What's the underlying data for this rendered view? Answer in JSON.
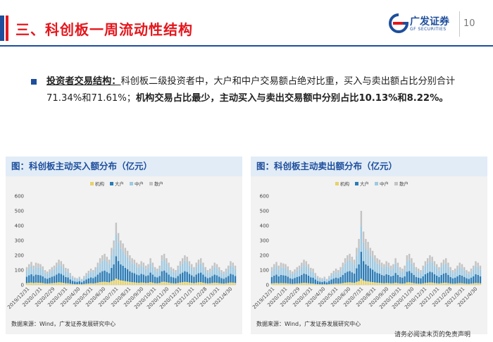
{
  "header": {
    "title": "三、科创板一周流动性结构",
    "logo_cn": "广发证券",
    "logo_en": "GF SECURITIES",
    "page_number": "10"
  },
  "body": {
    "label": "投资者交易结构：",
    "text1": "科创板二级投资者中，大户和中户交易额占绝对比重，买入与卖出额占比分别合计71.34%和71.61%；",
    "text2": "机构交易占比最少，主动买入与卖出交易额中分别占比10.13%和8.22%。"
  },
  "footer": {
    "disclaimer": "请务必阅读末页的免责声明"
  },
  "colors": {
    "institution": "#e6d268",
    "large": "#2a7bb6",
    "medium": "#9ec9e2",
    "retail": "#c3c3c3",
    "title_red": "#e4161c",
    "brand_blue": "#1e4e9c"
  },
  "chart_data": [
    {
      "type": "area",
      "stacked": true,
      "title": "图：科创板主动买入额分布（亿元）",
      "source": "数据来源：Wind，广发证券发展研究中心",
      "legend": [
        "机构",
        "大户",
        "中户",
        "散户"
      ],
      "legend_position": "top",
      "ylim": [
        0,
        600
      ],
      "yticks": [
        0,
        100,
        200,
        300,
        400,
        500,
        600
      ],
      "xticks": [
        "2019/12/31",
        "2020/1/31",
        "2020/2/29",
        "2020/3/31",
        "2020/4/30",
        "2020/5/31",
        "2020/6/30",
        "2020/7/31",
        "2020/8/31",
        "2020/9/30",
        "2020/10/31",
        "2020/11/30",
        "2020/12/31",
        "2021/1/31",
        "2021/2/28",
        "2021/3/31",
        "2021/4/30"
      ],
      "grid": false,
      "series_total_profile": [
        [
          0,
          120
        ],
        [
          1,
          140
        ],
        [
          2,
          155
        ],
        [
          3,
          130
        ],
        [
          4,
          150
        ],
        [
          5,
          145
        ],
        [
          6,
          140
        ],
        [
          7,
          125
        ],
        [
          8,
          100
        ],
        [
          9,
          90
        ],
        [
          10,
          105
        ],
        [
          11,
          120
        ],
        [
          12,
          130
        ],
        [
          13,
          150
        ],
        [
          14,
          170
        ],
        [
          15,
          160
        ],
        [
          16,
          140
        ],
        [
          17,
          115
        ],
        [
          18,
          110
        ],
        [
          19,
          80
        ],
        [
          20,
          60
        ],
        [
          21,
          50
        ],
        [
          22,
          45
        ],
        [
          23,
          55
        ],
        [
          24,
          40
        ],
        [
          25,
          60
        ],
        [
          26,
          80
        ],
        [
          27,
          95
        ],
        [
          28,
          110
        ],
        [
          29,
          100
        ],
        [
          30,
          120
        ],
        [
          31,
          150
        ],
        [
          32,
          180
        ],
        [
          33,
          200
        ],
        [
          34,
          210
        ],
        [
          35,
          190
        ],
        [
          36,
          170
        ],
        [
          37,
          250
        ],
        [
          38,
          300
        ],
        [
          39,
          420
        ],
        [
          40,
          350
        ],
        [
          41,
          300
        ],
        [
          42,
          280
        ],
        [
          43,
          250
        ],
        [
          44,
          230
        ],
        [
          45,
          200
        ],
        [
          46,
          180
        ],
        [
          47,
          170
        ],
        [
          48,
          150
        ],
        [
          49,
          140
        ],
        [
          50,
          160
        ],
        [
          51,
          150
        ],
        [
          52,
          130
        ],
        [
          53,
          140
        ],
        [
          54,
          180
        ],
        [
          55,
          150
        ],
        [
          56,
          120
        ],
        [
          57,
          110
        ],
        [
          58,
          130
        ],
        [
          59,
          200
        ],
        [
          60,
          210
        ],
        [
          61,
          180
        ],
        [
          62,
          150
        ],
        [
          63,
          120
        ],
        [
          64,
          110
        ],
        [
          65,
          100
        ],
        [
          66,
          130
        ],
        [
          67,
          160
        ],
        [
          68,
          180
        ],
        [
          69,
          200
        ],
        [
          70,
          190
        ],
        [
          71,
          160
        ],
        [
          72,
          140
        ],
        [
          73,
          120
        ],
        [
          74,
          150
        ],
        [
          75,
          170
        ],
        [
          76,
          180
        ],
        [
          77,
          150
        ],
        [
          78,
          120
        ],
        [
          79,
          100
        ],
        [
          80,
          110
        ],
        [
          81,
          130
        ],
        [
          82,
          150
        ],
        [
          83,
          140
        ],
        [
          84,
          120
        ],
        [
          85,
          100
        ],
        [
          86,
          90
        ],
        [
          87,
          110
        ],
        [
          88,
          130
        ],
        [
          89,
          160
        ],
        [
          90,
          150
        ],
        [
          91,
          130
        ]
      ],
      "shares": {
        "机构": 0.1013,
        "大户": 0.36,
        "中户": 0.3534,
        "散户": 0.1853
      }
    },
    {
      "type": "area",
      "stacked": true,
      "title": "图：科创板主动卖出额分布（亿元）",
      "source": "数据来源：Wind，广发证券发展研究中心",
      "legend": [
        "机构",
        "大户",
        "中户",
        "散户"
      ],
      "legend_position": "top",
      "ylim": [
        0,
        600
      ],
      "yticks": [
        0,
        100,
        200,
        300,
        400,
        500,
        600
      ],
      "xticks": [
        "2019/12/31",
        "2020/1/31",
        "2020/2/29",
        "2020/3/31",
        "2020/4/30",
        "2020/5/31",
        "2020/6/30",
        "2020/7/31",
        "2020/8/31",
        "2020/9/30",
        "2020/10/31",
        "2020/11/30",
        "2020/12/31",
        "2021/1/31",
        "2021/2/28",
        "2021/3/31",
        "2021/4/30"
      ],
      "grid": false,
      "series_total_profile": [
        [
          0,
          120
        ],
        [
          1,
          140
        ],
        [
          2,
          155
        ],
        [
          3,
          130
        ],
        [
          4,
          150
        ],
        [
          5,
          145
        ],
        [
          6,
          140
        ],
        [
          7,
          125
        ],
        [
          8,
          100
        ],
        [
          9,
          90
        ],
        [
          10,
          105
        ],
        [
          11,
          120
        ],
        [
          12,
          130
        ],
        [
          13,
          150
        ],
        [
          14,
          170
        ],
        [
          15,
          160
        ],
        [
          16,
          140
        ],
        [
          17,
          115
        ],
        [
          18,
          110
        ],
        [
          19,
          80
        ],
        [
          20,
          60
        ],
        [
          21,
          50
        ],
        [
          22,
          45
        ],
        [
          23,
          55
        ],
        [
          24,
          40
        ],
        [
          25,
          60
        ],
        [
          26,
          80
        ],
        [
          27,
          95
        ],
        [
          28,
          110
        ],
        [
          29,
          100
        ],
        [
          30,
          120
        ],
        [
          31,
          150
        ],
        [
          32,
          180
        ],
        [
          33,
          200
        ],
        [
          34,
          210
        ],
        [
          35,
          190
        ],
        [
          36,
          170
        ],
        [
          37,
          250
        ],
        [
          38,
          310
        ],
        [
          39,
          500
        ],
        [
          40,
          360
        ],
        [
          41,
          310
        ],
        [
          42,
          290
        ],
        [
          43,
          250
        ],
        [
          44,
          230
        ],
        [
          45,
          200
        ],
        [
          46,
          180
        ],
        [
          47,
          170
        ],
        [
          48,
          150
        ],
        [
          49,
          140
        ],
        [
          50,
          160
        ],
        [
          51,
          150
        ],
        [
          52,
          130
        ],
        [
          53,
          140
        ],
        [
          54,
          180
        ],
        [
          55,
          150
        ],
        [
          56,
          120
        ],
        [
          57,
          110
        ],
        [
          58,
          130
        ],
        [
          59,
          200
        ],
        [
          60,
          210
        ],
        [
          61,
          180
        ],
        [
          62,
          150
        ],
        [
          63,
          120
        ],
        [
          64,
          110
        ],
        [
          65,
          100
        ],
        [
          66,
          130
        ],
        [
          67,
          160
        ],
        [
          68,
          180
        ],
        [
          69,
          200
        ],
        [
          70,
          190
        ],
        [
          71,
          160
        ],
        [
          72,
          140
        ],
        [
          73,
          120
        ],
        [
          74,
          150
        ],
        [
          75,
          170
        ],
        [
          76,
          180
        ],
        [
          77,
          150
        ],
        [
          78,
          120
        ],
        [
          79,
          100
        ],
        [
          80,
          110
        ],
        [
          81,
          130
        ],
        [
          82,
          150
        ],
        [
          83,
          140
        ],
        [
          84,
          120
        ],
        [
          85,
          100
        ],
        [
          86,
          90
        ],
        [
          87,
          110
        ],
        [
          88,
          130
        ],
        [
          89,
          160
        ],
        [
          90,
          150
        ],
        [
          91,
          130
        ]
      ],
      "shares": {
        "机构": 0.0822,
        "大户": 0.365,
        "中户": 0.3511,
        "散户": 0.2017
      }
    }
  ]
}
